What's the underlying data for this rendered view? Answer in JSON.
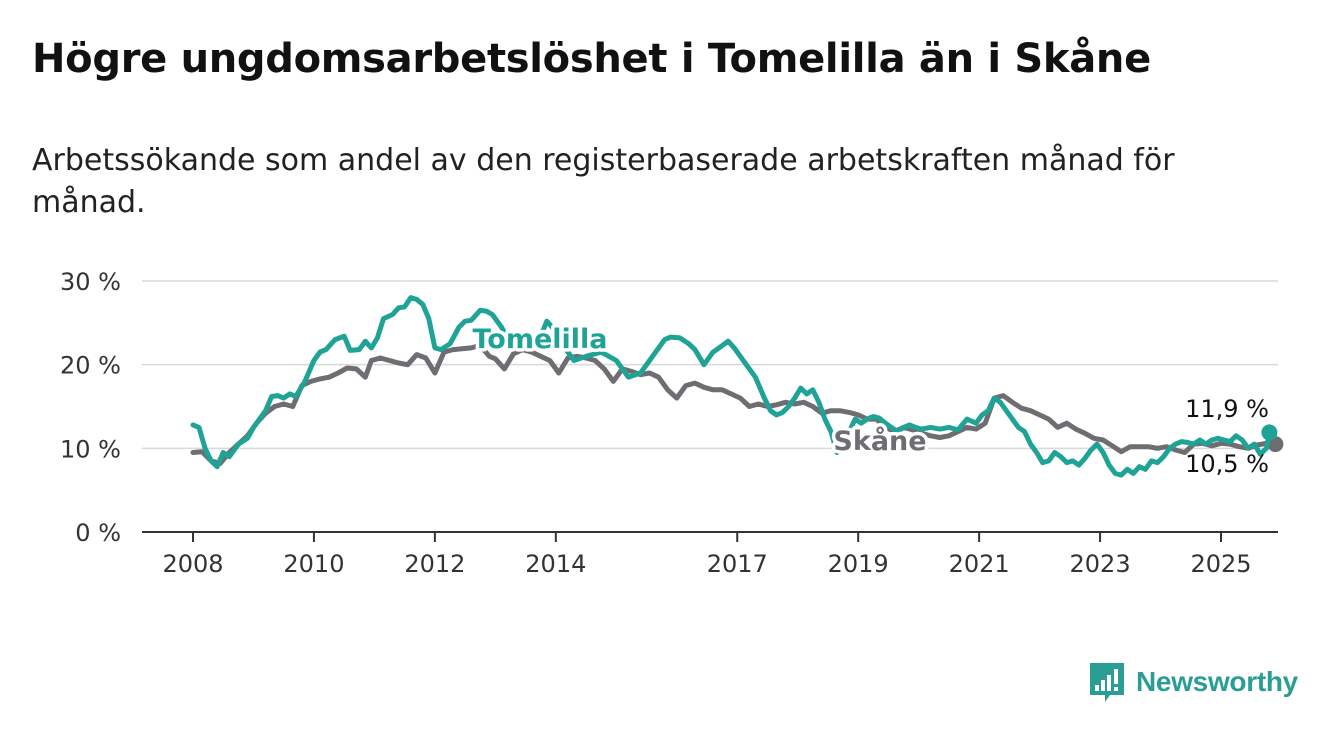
{
  "title": "Högre ungdomsarbetslöshet i Tomelilla än i Skåne",
  "subtitle": "Arbetssökande som andel av den registerbaserade arbetskraften månad för månad.",
  "brand": {
    "name": "Newsworthy",
    "icon": "bar-chart-speech-icon",
    "color": "#2a9e94"
  },
  "chart_data": {
    "type": "line",
    "y_ticks": [
      0,
      10,
      20,
      30
    ],
    "y_tick_labels": [
      "0 %",
      "10 %",
      "20 %",
      "30 %"
    ],
    "ylim": [
      0,
      30
    ],
    "x_ticks": [
      2008,
      2010,
      2012,
      2014,
      2017,
      2019,
      2021,
      2023,
      2025
    ],
    "x_tick_labels": [
      "2008",
      "2010",
      "2012",
      "2014",
      "2017",
      "2019",
      "2021",
      "2023",
      "2025"
    ],
    "xlim": [
      2007.6,
      2025.9
    ],
    "grid": true,
    "series": [
      {
        "name": "Tomelilla",
        "color": "#1fa397",
        "last_label": "11,9 %",
        "last_value": 11.9,
        "points": [
          [
            2008.0,
            12.8
          ],
          [
            2008.1,
            12.5
          ],
          [
            2008.2,
            10.0
          ],
          [
            2008.3,
            8.5
          ],
          [
            2008.4,
            7.8
          ],
          [
            2008.5,
            9.5
          ],
          [
            2008.6,
            9.0
          ],
          [
            2008.75,
            10.5
          ],
          [
            2008.9,
            11.2
          ],
          [
            2009.0,
            12.5
          ],
          [
            2009.2,
            14.5
          ],
          [
            2009.3,
            16.2
          ],
          [
            2009.4,
            16.3
          ],
          [
            2009.5,
            16.0
          ],
          [
            2009.6,
            16.5
          ],
          [
            2009.7,
            16.2
          ],
          [
            2009.85,
            18.0
          ],
          [
            2010.0,
            20.5
          ],
          [
            2010.1,
            21.5
          ],
          [
            2010.2,
            21.8
          ],
          [
            2010.35,
            23.0
          ],
          [
            2010.5,
            23.4
          ],
          [
            2010.6,
            21.7
          ],
          [
            2010.75,
            21.8
          ],
          [
            2010.85,
            22.8
          ],
          [
            2010.95,
            22.0
          ],
          [
            2011.05,
            23.2
          ],
          [
            2011.15,
            25.5
          ],
          [
            2011.3,
            26.0
          ],
          [
            2011.4,
            26.8
          ],
          [
            2011.5,
            26.9
          ],
          [
            2011.6,
            28.0
          ],
          [
            2011.7,
            27.8
          ],
          [
            2011.8,
            27.2
          ],
          [
            2011.9,
            25.5
          ],
          [
            2012.0,
            22.0
          ],
          [
            2012.1,
            21.8
          ],
          [
            2012.25,
            22.5
          ],
          [
            2012.4,
            24.5
          ],
          [
            2012.5,
            25.2
          ],
          [
            2012.6,
            25.3
          ],
          [
            2012.75,
            26.5
          ],
          [
            2012.85,
            26.4
          ],
          [
            2012.95,
            26.0
          ],
          [
            2013.1,
            24.5
          ],
          [
            2013.25,
            22.5
          ],
          [
            2013.4,
            23.5
          ],
          [
            2013.6,
            23.0
          ],
          [
            2013.7,
            22.5
          ],
          [
            2013.85,
            25.2
          ],
          [
            2014.0,
            24.0
          ],
          [
            2014.15,
            22.0
          ],
          [
            2014.3,
            20.5
          ],
          [
            2014.5,
            21.0
          ],
          [
            2014.75,
            21.5
          ],
          [
            2015.0,
            20.5
          ],
          [
            2015.2,
            18.5
          ],
          [
            2015.4,
            19.0
          ],
          [
            2015.55,
            20.5
          ],
          [
            2015.65,
            21.5
          ],
          [
            2015.8,
            23.0
          ],
          [
            2015.9,
            23.3
          ],
          [
            2016.05,
            23.2
          ],
          [
            2016.2,
            22.5
          ],
          [
            2016.3,
            21.8
          ],
          [
            2016.45,
            20.0
          ],
          [
            2016.6,
            21.5
          ],
          [
            2016.7,
            22.0
          ],
          [
            2016.85,
            22.8
          ],
          [
            2016.95,
            22.0
          ],
          [
            2017.05,
            21.0
          ],
          [
            2017.15,
            20.0
          ],
          [
            2017.3,
            18.5
          ],
          [
            2017.45,
            16.0
          ],
          [
            2017.55,
            14.5
          ],
          [
            2017.65,
            14.0
          ],
          [
            2017.75,
            14.3
          ],
          [
            2017.85,
            15.0
          ],
          [
            2017.95,
            16.0
          ],
          [
            2018.05,
            17.2
          ],
          [
            2018.15,
            16.5
          ],
          [
            2018.25,
            17.0
          ],
          [
            2018.35,
            15.5
          ],
          [
            2018.45,
            13.5
          ],
          [
            2018.55,
            12.0
          ],
          [
            2018.65,
            9.5
          ],
          [
            2018.75,
            10.5
          ],
          [
            2018.85,
            12.0
          ],
          [
            2018.95,
            13.5
          ],
          [
            2019.05,
            13.0
          ],
          [
            2019.15,
            13.5
          ],
          [
            2019.25,
            13.8
          ],
          [
            2019.35,
            13.6
          ],
          [
            2019.45,
            13.0
          ],
          [
            2019.55,
            12.5
          ],
          [
            2019.65,
            12.0
          ],
          [
            2019.75,
            12.5
          ],
          [
            2019.85,
            12.8
          ],
          [
            2019.95,
            12.5
          ],
          [
            2020.05,
            12.3
          ],
          [
            2020.2,
            12.5
          ],
          [
            2020.35,
            12.3
          ],
          [
            2020.5,
            12.5
          ],
          [
            2020.65,
            12.2
          ],
          [
            2020.8,
            13.5
          ],
          [
            2020.95,
            13.0
          ],
          [
            2021.05,
            14.0
          ],
          [
            2021.15,
            14.5
          ],
          [
            2021.25,
            16.0
          ],
          [
            2021.35,
            15.5
          ],
          [
            2021.45,
            14.5
          ],
          [
            2021.55,
            13.5
          ],
          [
            2021.65,
            12.5
          ],
          [
            2021.75,
            12.0
          ],
          [
            2021.85,
            10.5
          ],
          [
            2021.95,
            9.5
          ],
          [
            2022.05,
            8.3
          ],
          [
            2022.15,
            8.5
          ],
          [
            2022.25,
            9.5
          ],
          [
            2022.35,
            9.0
          ],
          [
            2022.45,
            8.3
          ],
          [
            2022.55,
            8.5
          ],
          [
            2022.65,
            8.0
          ],
          [
            2022.75,
            8.8
          ],
          [
            2022.85,
            9.8
          ],
          [
            2022.95,
            10.5
          ],
          [
            2023.05,
            9.5
          ],
          [
            2023.15,
            8.0
          ],
          [
            2023.25,
            7.0
          ],
          [
            2023.35,
            6.8
          ],
          [
            2023.45,
            7.5
          ],
          [
            2023.55,
            7.0
          ],
          [
            2023.65,
            7.8
          ],
          [
            2023.75,
            7.5
          ],
          [
            2023.85,
            8.5
          ],
          [
            2023.95,
            8.3
          ],
          [
            2024.05,
            9.0
          ],
          [
            2024.15,
            10.0
          ],
          [
            2024.25,
            10.5
          ],
          [
            2024.35,
            10.8
          ],
          [
            2024.45,
            10.7
          ],
          [
            2024.55,
            10.5
          ],
          [
            2024.65,
            11.0
          ],
          [
            2024.75,
            10.5
          ],
          [
            2024.85,
            11.0
          ],
          [
            2024.95,
            11.2
          ],
          [
            2025.05,
            11.0
          ],
          [
            2025.15,
            10.8
          ],
          [
            2025.25,
            11.5
          ],
          [
            2025.35,
            11.0
          ],
          [
            2025.45,
            10.0
          ],
          [
            2025.55,
            10.5
          ],
          [
            2025.65,
            9.3
          ],
          [
            2025.75,
            10.0
          ],
          [
            2025.8,
            11.9
          ]
        ]
      },
      {
        "name": "Skåne",
        "color": "#6e6d72",
        "last_label": "10,5 %",
        "last_value": 10.5,
        "points": [
          [
            2008.0,
            9.5
          ],
          [
            2008.15,
            9.6
          ],
          [
            2008.3,
            8.5
          ],
          [
            2008.45,
            8.2
          ],
          [
            2008.6,
            9.5
          ],
          [
            2008.75,
            10.5
          ],
          [
            2008.9,
            11.5
          ],
          [
            2009.05,
            13.0
          ],
          [
            2009.2,
            14.2
          ],
          [
            2009.35,
            15.0
          ],
          [
            2009.5,
            15.3
          ],
          [
            2009.65,
            15.0
          ],
          [
            2009.8,
            17.5
          ],
          [
            2009.95,
            18.0
          ],
          [
            2010.1,
            18.3
          ],
          [
            2010.25,
            18.5
          ],
          [
            2010.4,
            19.0
          ],
          [
            2010.55,
            19.6
          ],
          [
            2010.7,
            19.5
          ],
          [
            2010.85,
            18.5
          ],
          [
            2010.95,
            20.5
          ],
          [
            2011.1,
            20.8
          ],
          [
            2011.25,
            20.5
          ],
          [
            2011.4,
            20.2
          ],
          [
            2011.55,
            20.0
          ],
          [
            2011.7,
            21.2
          ],
          [
            2011.85,
            20.8
          ],
          [
            2012.0,
            19.0
          ],
          [
            2012.15,
            21.5
          ],
          [
            2012.3,
            21.8
          ],
          [
            2012.45,
            21.9
          ],
          [
            2012.6,
            22.0
          ],
          [
            2012.75,
            22.3
          ],
          [
            2012.9,
            21.0
          ],
          [
            2013.0,
            20.7
          ],
          [
            2013.15,
            19.5
          ],
          [
            2013.3,
            21.3
          ],
          [
            2013.45,
            21.8
          ],
          [
            2013.6,
            21.5
          ],
          [
            2013.75,
            21.0
          ],
          [
            2013.9,
            20.5
          ],
          [
            2014.05,
            19.0
          ],
          [
            2014.2,
            20.8
          ],
          [
            2014.35,
            21.0
          ],
          [
            2014.5,
            20.8
          ],
          [
            2014.65,
            20.5
          ],
          [
            2014.8,
            19.5
          ],
          [
            2014.95,
            18.0
          ],
          [
            2015.1,
            19.5
          ],
          [
            2015.25,
            19.2
          ],
          [
            2015.4,
            18.8
          ],
          [
            2015.55,
            19.0
          ],
          [
            2015.7,
            18.5
          ],
          [
            2015.85,
            17.0
          ],
          [
            2016.0,
            16.0
          ],
          [
            2016.15,
            17.5
          ],
          [
            2016.3,
            17.8
          ],
          [
            2016.45,
            17.3
          ],
          [
            2016.6,
            17.0
          ],
          [
            2016.75,
            17.0
          ],
          [
            2016.9,
            16.5
          ],
          [
            2017.05,
            16.0
          ],
          [
            2017.2,
            15.0
          ],
          [
            2017.35,
            15.3
          ],
          [
            2017.5,
            15.0
          ],
          [
            2017.65,
            15.2
          ],
          [
            2017.8,
            15.5
          ],
          [
            2017.95,
            15.3
          ],
          [
            2018.1,
            15.5
          ],
          [
            2018.25,
            15.0
          ],
          [
            2018.4,
            14.2
          ],
          [
            2018.55,
            14.5
          ],
          [
            2018.7,
            14.5
          ],
          [
            2018.85,
            14.3
          ],
          [
            2019.0,
            14.0
          ],
          [
            2019.15,
            13.5
          ],
          [
            2019.3,
            13.5
          ],
          [
            2019.45,
            12.5
          ],
          [
            2019.6,
            12.0
          ],
          [
            2019.75,
            12.5
          ],
          [
            2019.9,
            12.2
          ],
          [
            2020.05,
            11.8
          ],
          [
            2020.2,
            11.5
          ],
          [
            2020.35,
            11.3
          ],
          [
            2020.5,
            11.5
          ],
          [
            2020.65,
            12.0
          ],
          [
            2020.8,
            12.5
          ],
          [
            2020.95,
            12.3
          ],
          [
            2021.1,
            13.0
          ],
          [
            2021.25,
            16.0
          ],
          [
            2021.4,
            16.3
          ],
          [
            2021.55,
            15.5
          ],
          [
            2021.7,
            14.8
          ],
          [
            2021.85,
            14.5
          ],
          [
            2022.0,
            14.0
          ],
          [
            2022.15,
            13.5
          ],
          [
            2022.3,
            12.5
          ],
          [
            2022.45,
            13.0
          ],
          [
            2022.6,
            12.3
          ],
          [
            2022.75,
            11.8
          ],
          [
            2022.9,
            11.2
          ],
          [
            2023.05,
            11.0
          ],
          [
            2023.2,
            10.3
          ],
          [
            2023.35,
            9.6
          ],
          [
            2023.5,
            10.2
          ],
          [
            2023.65,
            10.2
          ],
          [
            2023.8,
            10.2
          ],
          [
            2023.95,
            10.0
          ],
          [
            2024.1,
            10.2
          ],
          [
            2024.25,
            9.8
          ],
          [
            2024.4,
            9.5
          ],
          [
            2024.55,
            10.5
          ],
          [
            2024.7,
            10.6
          ],
          [
            2024.85,
            10.3
          ],
          [
            2025.0,
            10.6
          ],
          [
            2025.15,
            10.5
          ],
          [
            2025.3,
            10.2
          ],
          [
            2025.45,
            10.0
          ],
          [
            2025.6,
            10.4
          ],
          [
            2025.75,
            10.6
          ],
          [
            2025.9,
            10.5
          ]
        ]
      }
    ]
  }
}
